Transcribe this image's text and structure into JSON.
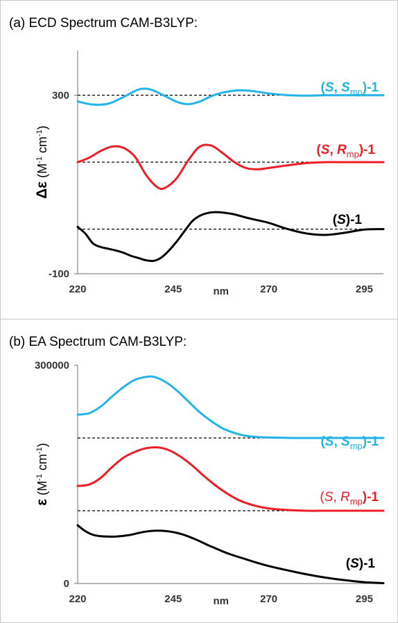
{
  "chart_data": [
    {
      "type": "line",
      "title": "(a) ECD Spectrum CAM-B3LYP:",
      "xlabel": "nm",
      "ylabel": "Δε (M-1 cm-1)",
      "ylabel_parts": {
        "symbol": "Δε",
        "pre": " (M",
        "sup1": "-1",
        "mid": " cm",
        "sup2": "-1",
        "post": ")"
      },
      "xlim": [
        220,
        300
      ],
      "ylim": [
        -100,
        400
      ],
      "xticks": [
        "220",
        "245",
        "270",
        "295"
      ],
      "xtick_values": [
        220,
        245,
        270,
        295
      ],
      "yticks": [
        "300",
        "-100"
      ],
      "ytick_values": [
        300,
        -100
      ],
      "baselines": [
        300,
        150,
        0
      ],
      "series": [
        {
          "name": "(S, Smp)-1",
          "label_parts": {
            "pre": "(",
            "i1": "S",
            "sep": ", ",
            "i2": "S",
            "sub": "mp",
            "post": ")-1"
          },
          "color": "#22b3e8",
          "x": [
            220,
            224,
            228,
            232,
            236,
            239,
            242,
            246,
            249,
            252,
            255,
            258,
            262,
            266,
            270,
            275,
            280,
            285,
            290,
            295,
            300
          ],
          "y": [
            286,
            279,
            281,
            296,
            313,
            313,
            302,
            285,
            280,
            286,
            298,
            306,
            311,
            309,
            304,
            300,
            299,
            300,
            300,
            300,
            300
          ]
        },
        {
          "name": "(S, Rmp)-1",
          "label_parts": {
            "pre": "(",
            "i1": "S",
            "sep": ", ",
            "i2": "R",
            "sub": "mp",
            "post": ")-1"
          },
          "color": "#ee1c24",
          "x": [
            220,
            223,
            226,
            229,
            232,
            235,
            238,
            241,
            243,
            246,
            249,
            252,
            255,
            258,
            261,
            264,
            267,
            270,
            275,
            280,
            285,
            290,
            295,
            300
          ],
          "y": [
            150,
            160,
            175,
            185,
            182,
            162,
            120,
            93,
            93,
            115,
            155,
            185,
            187,
            170,
            150,
            137,
            134,
            137,
            143,
            148,
            150,
            150,
            150,
            150
          ]
        },
        {
          "name": "(S)-1",
          "label_parts": {
            "pre": "(",
            "i1": "S",
            "post": ")-1"
          },
          "color": "#000000",
          "x": [
            220,
            222,
            224,
            226,
            228,
            230,
            232,
            234,
            236,
            238,
            240,
            242,
            244,
            246,
            248,
            250,
            252,
            254,
            256,
            258,
            261,
            264,
            267,
            270,
            275,
            280,
            285,
            290,
            295,
            300
          ],
          "y": [
            5,
            -10,
            -32,
            -40,
            -44,
            -48,
            -53,
            -60,
            -65,
            -70,
            -71,
            -63,
            -47,
            -27,
            -4,
            18,
            30,
            36,
            38,
            37,
            33,
            26,
            20,
            14,
            0,
            -10,
            -13,
            -8,
            -1,
            0
          ]
        }
      ],
      "legend": "inline labels at right"
    },
    {
      "type": "line",
      "title": "(b) EA Spectrum CAM-B3LYP:",
      "xlabel": "nm",
      "ylabel": "ε (M-1 cm-1)",
      "ylabel_parts": {
        "symbol": "ε",
        "pre": " (M",
        "sup1": "-1",
        "mid": " cm",
        "sup2": "-1",
        "post": ")"
      },
      "xlim": [
        220,
        300
      ],
      "ylim": [
        0,
        300000
      ],
      "xticks": [
        "220",
        "245",
        "270",
        "295"
      ],
      "xtick_values": [
        220,
        245,
        270,
        295
      ],
      "yticks": [
        "300000",
        "0"
      ],
      "ytick_values": [
        300000,
        0
      ],
      "baselines": [
        200000,
        100000
      ],
      "series": [
        {
          "name": "(S, Smp)-1",
          "label_parts": {
            "pre": "(",
            "i1": "S",
            "sep": ", ",
            "i2": "S",
            "sub": "mp",
            "post": ")-1"
          },
          "color": "#22b3e8",
          "x": [
            220,
            223,
            226,
            229,
            232,
            235,
            238,
            240,
            243,
            246,
            249,
            252,
            255,
            258,
            261,
            264,
            268,
            272,
            276,
            280,
            285,
            290,
            295,
            300
          ],
          "y": [
            232000,
            234000,
            243000,
            257000,
            270000,
            280000,
            284000,
            284000,
            277000,
            265000,
            250000,
            235000,
            223000,
            213000,
            207000,
            203000,
            201000,
            200500,
            200000,
            200000,
            200000,
            200000,
            200000,
            200000
          ]
        },
        {
          "name": "(S, Rmp)-1",
          "label_parts": {
            "pre": "(",
            "i1": "S",
            "sep": ", ",
            "i2": "R",
            "sub": "mp",
            "post": ")-1"
          },
          "color": "#ee1c24",
          "x": [
            220,
            223,
            226,
            229,
            232,
            235,
            238,
            241,
            244,
            247,
            250,
            253,
            256,
            259,
            262,
            265,
            268,
            271,
            275,
            280,
            285,
            290,
            295,
            300
          ],
          "y": [
            134000,
            136000,
            145000,
            160000,
            173000,
            181000,
            186000,
            187000,
            183000,
            174000,
            162000,
            148000,
            135000,
            124000,
            115000,
            109000,
            105000,
            102500,
            101000,
            100000,
            100000,
            100000,
            100000,
            100000
          ]
        },
        {
          "name": "(S)-1",
          "label_parts": {
            "pre": "(",
            "i1": "S",
            "post": ")-1"
          },
          "color": "#000000",
          "x": [
            220,
            222,
            224,
            226,
            228,
            230,
            232,
            234,
            236,
            238,
            240,
            242,
            244,
            246,
            248,
            250,
            252,
            254,
            256,
            258,
            260,
            263,
            266,
            270,
            275,
            280,
            285,
            290,
            295,
            300
          ],
          "y": [
            80000,
            72000,
            67000,
            65000,
            64500,
            64500,
            65500,
            67000,
            69500,
            71500,
            72500,
            72500,
            71500,
            69500,
            66500,
            62500,
            58000,
            53000,
            48500,
            44000,
            40000,
            35000,
            30000,
            24000,
            18000,
            12500,
            8000,
            4500,
            1800,
            500
          ]
        }
      ],
      "legend": "inline labels at right"
    }
  ]
}
